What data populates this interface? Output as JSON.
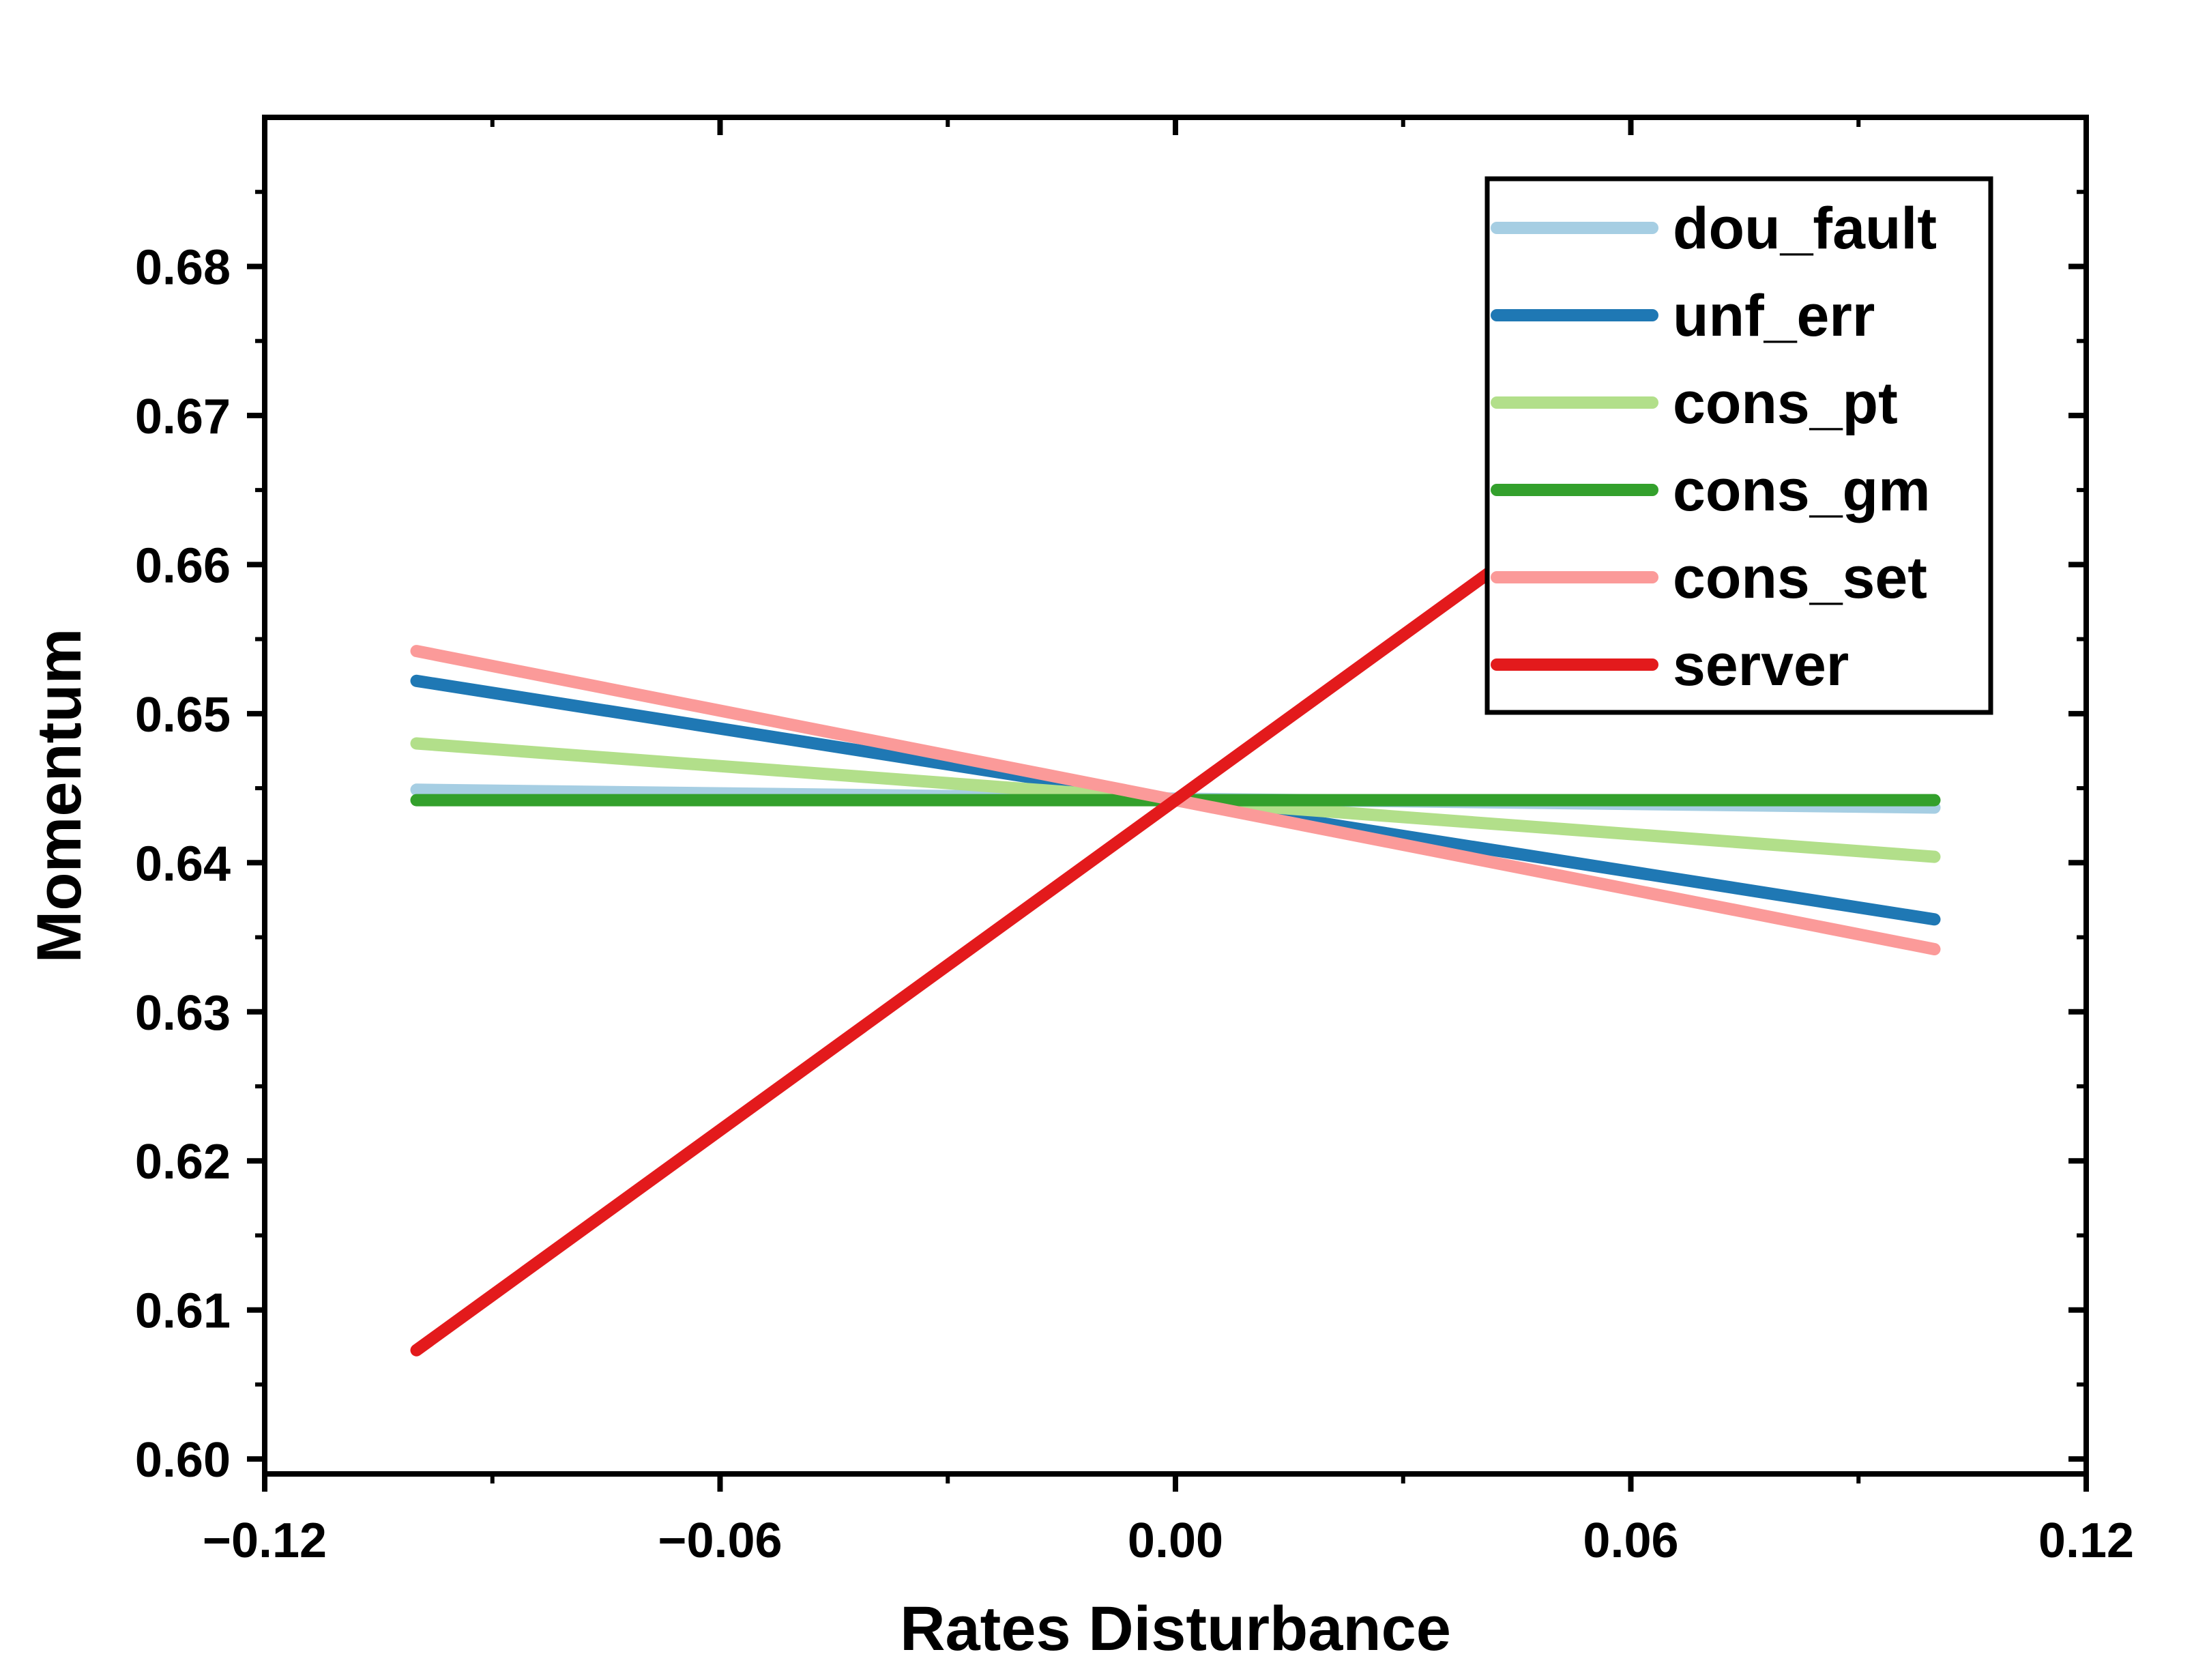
{
  "chart_data": {
    "type": "line",
    "xlabel": "Rates Disturbance",
    "ylabel": "Momentum",
    "xlim": [
      -0.12,
      0.12
    ],
    "ylim": [
      0.599,
      0.69
    ],
    "xticks": [
      -0.12,
      -0.06,
      0.0,
      0.06,
      0.12
    ],
    "xtick_labels": [
      "−0.12",
      "−0.06",
      "0.00",
      "0.06",
      "0.12"
    ],
    "yticks": [
      0.6,
      0.61,
      0.62,
      0.63,
      0.64,
      0.65,
      0.66,
      0.67,
      0.68
    ],
    "ytick_labels": [
      "0.60",
      "0.61",
      "0.62",
      "0.63",
      "0.64",
      "0.65",
      "0.66",
      "0.67",
      "0.68"
    ],
    "grid": false,
    "legend_position": "top-right",
    "series": [
      {
        "name": "dou_fault",
        "color": "#a6cee3",
        "x": [
          -0.1,
          0.1
        ],
        "y": [
          0.6449,
          0.6437
        ]
      },
      {
        "name": "unf_err",
        "color": "#1f78b4",
        "x": [
          -0.1,
          0.1
        ],
        "y": [
          0.6522,
          0.6362
        ]
      },
      {
        "name": "cons_pt",
        "color": "#b2df8a",
        "x": [
          -0.1,
          0.1
        ],
        "y": [
          0.648,
          0.6404
        ]
      },
      {
        "name": "cons_gm",
        "color": "#33a02c",
        "x": [
          -0.1,
          0.1
        ],
        "y": [
          0.6442,
          0.6442
        ]
      },
      {
        "name": "cons_set",
        "color": "#fb9a99",
        "x": [
          -0.1,
          0.1
        ],
        "y": [
          0.6542,
          0.6342
        ]
      },
      {
        "name": "server",
        "color": "#e31a1c",
        "x": [
          -0.1,
          0.1
        ],
        "y": [
          0.6073,
          0.6811
        ]
      }
    ]
  }
}
